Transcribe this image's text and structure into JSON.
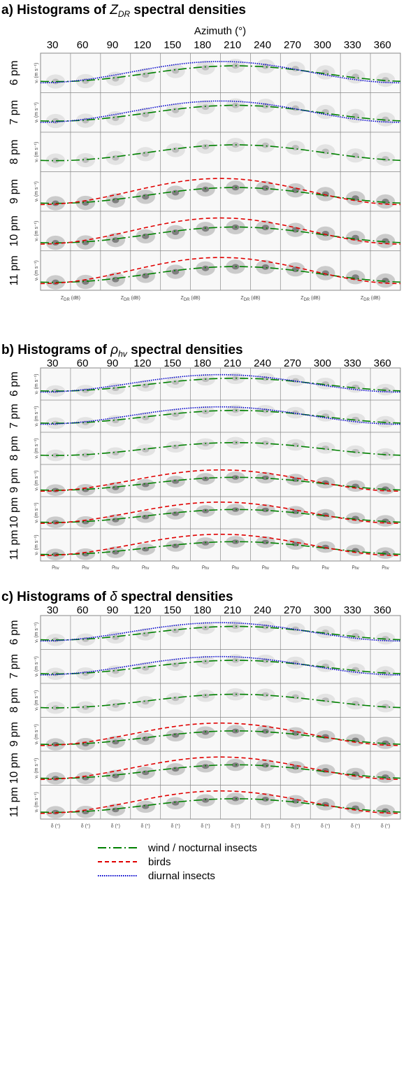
{
  "panels": [
    {
      "title": {
        "prefix": "a) Histograms of ",
        "symbol": "Z",
        "subscript": "DR",
        "suffix": " spectral densities"
      },
      "axis_title": "Azimuth (°)",
      "azimuths": [
        "30",
        "60",
        "90",
        "120",
        "150",
        "180",
        "210",
        "240",
        "270",
        "300",
        "330",
        "360"
      ],
      "rows": [
        "6 pm",
        "7 pm",
        "8 pm",
        "9 pm",
        "10 pm",
        "11 pm"
      ],
      "y_label": "vᵣ (m s⁻¹)",
      "x_label": {
        "symbol": "Z",
        "subscript": "DR",
        "unit": " (dB)"
      }
    },
    {
      "title": {
        "prefix": "b) Histograms of ",
        "symbol": "ρ",
        "subscript": "hv",
        "suffix": " spectral densities"
      },
      "azimuths": [
        "30",
        "60",
        "90",
        "120",
        "150",
        "180",
        "210",
        "240",
        "270",
        "300",
        "330",
        "360"
      ],
      "rows": [
        "6 pm",
        "7 pm",
        "8 pm",
        "9 pm",
        "10 pm",
        "11 pm"
      ],
      "y_label": "vᵣ (m s⁻¹)",
      "x_label": {
        "symbol": "ρ",
        "subscript": "hv",
        "unit": ""
      }
    },
    {
      "title": {
        "prefix": "c) Histograms of ",
        "symbol": "δ",
        "subscript": "",
        "suffix": " spectral densities"
      },
      "azimuths": [
        "30",
        "60",
        "90",
        "120",
        "150",
        "180",
        "210",
        "240",
        "270",
        "300",
        "330",
        "360"
      ],
      "rows": [
        "6 pm",
        "7 pm",
        "8 pm",
        "9 pm",
        "10 pm",
        "11 pm"
      ],
      "y_label": "vᵣ (m s⁻¹)",
      "x_label": {
        "symbol": "δ",
        "subscript": "",
        "unit": " (°)"
      }
    }
  ],
  "legend": [
    {
      "label": "wind / nocturnal insects",
      "color": "#008000",
      "dash": "12 4 2 4"
    },
    {
      "label": "birds",
      "color": "#e00000",
      "dash": "6 4"
    },
    {
      "label": "diurnal insects",
      "color": "#0000cc",
      "dash": "1.5 1.5"
    }
  ]
}
